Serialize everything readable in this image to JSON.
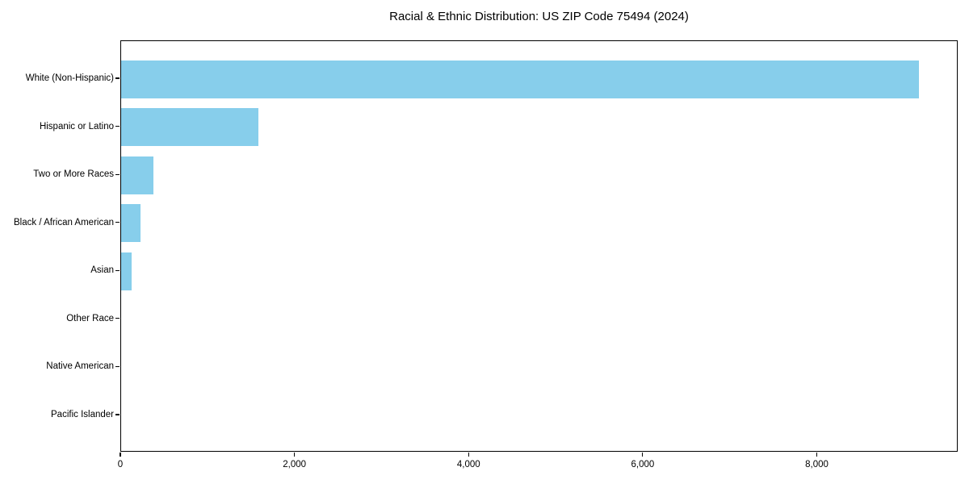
{
  "title": "Racial & Ethnic Distribution: US ZIP Code 75494 (2024)",
  "colors": {
    "bar": "#87CEEB",
    "axis": "#000000",
    "text": "#000000",
    "background": "#FFFFFF"
  },
  "chart_data": {
    "type": "bar",
    "orientation": "horizontal",
    "title": "Racial & Ethnic Distribution: US ZIP Code 75494 (2024)",
    "categories": [
      "White (Non-Hispanic)",
      "Hispanic or Latino",
      "Two or More Races",
      "Black / African American",
      "Asian",
      "Other Race",
      "Native American",
      "Pacific Islander"
    ],
    "values": [
      9160,
      1575,
      375,
      225,
      120,
      0,
      0,
      0
    ],
    "xlabel": "",
    "ylabel": "",
    "xlim": [
      0,
      9618
    ],
    "x_ticks": [
      0,
      2000,
      4000,
      6000,
      8000
    ],
    "x_tick_labels": [
      "0",
      "2,000",
      "4,000",
      "6,000",
      "8,000"
    ],
    "grid": false,
    "legend": false,
    "bar_color": "#87CEEB"
  }
}
